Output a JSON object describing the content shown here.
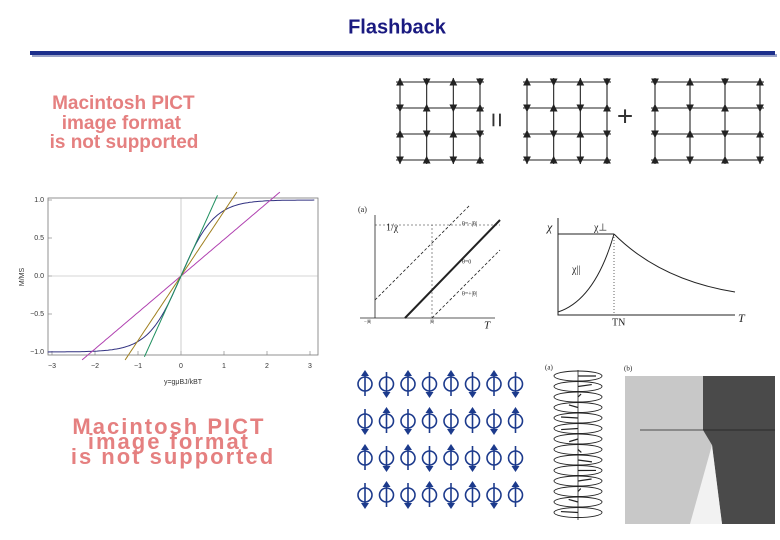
{
  "header": {
    "title": "Flashback"
  },
  "placeholders": [
    {
      "lines": [
        "Macintosh PICT",
        "image format",
        "is not supported"
      ]
    },
    {
      "lines": [
        "Macintosh PICT",
        "image format",
        "is not supported"
      ]
    }
  ],
  "figures": {
    "magnetization": {
      "y_ticks": [
        "1.0",
        "0.5",
        "0.0",
        "−0.5",
        "−1.0"
      ],
      "x_ticks": [
        "−3",
        "−2",
        "−1",
        "0",
        "1",
        "2",
        "3"
      ],
      "x_label": "y=gμBJ/kBT",
      "y_label": "M/MS"
    },
    "inverse_susceptibility": {
      "panel": "(a)",
      "y_label": "1/χ",
      "x_label": "T",
      "curve_labels": [
        "θ=−|θ|",
        "θ=0",
        "θ=+|θ|"
      ],
      "x_marks": [
        "−|θ|",
        "|θ|"
      ]
    },
    "susceptibility": {
      "y_label": "χ",
      "perp_label": "χ⊥",
      "par_label": "χ||",
      "tn_label": "TN",
      "x_label": "T"
    },
    "spiral": {
      "panel": "(a)"
    },
    "phase_diagram": {
      "panel": "(b)"
    }
  }
}
